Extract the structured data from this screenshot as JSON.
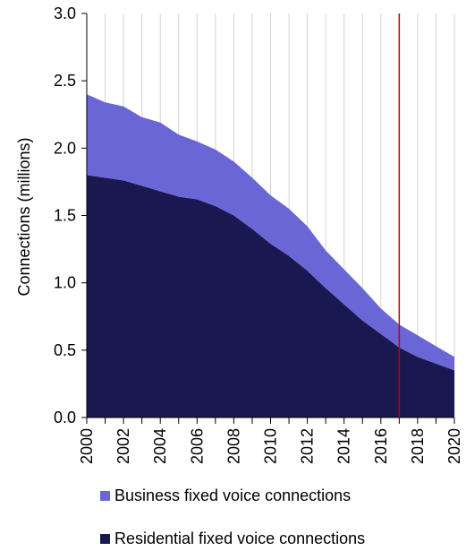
{
  "chart_data": {
    "type": "area",
    "stacked": true,
    "x": [
      2000,
      2001,
      2002,
      2003,
      2004,
      2005,
      2006,
      2007,
      2008,
      2009,
      2010,
      2011,
      2012,
      2013,
      2014,
      2015,
      2016,
      2017,
      2018,
      2019,
      2020
    ],
    "series": [
      {
        "name": "Residential fixed voice connections",
        "color": "#1a1850",
        "values": [
          1.8,
          1.78,
          1.76,
          1.72,
          1.68,
          1.64,
          1.62,
          1.57,
          1.5,
          1.4,
          1.29,
          1.2,
          1.09,
          0.96,
          0.84,
          0.72,
          0.62,
          0.52,
          0.45,
          0.4,
          0.35
        ]
      },
      {
        "name": "Business fixed voice connections",
        "color": "#6a66d6",
        "values": [
          0.6,
          0.56,
          0.55,
          0.51,
          0.51,
          0.46,
          0.43,
          0.42,
          0.4,
          0.38,
          0.36,
          0.35,
          0.33,
          0.28,
          0.26,
          0.24,
          0.19,
          0.17,
          0.16,
          0.13,
          0.1
        ]
      }
    ],
    "ylabel": "Connections (millions)",
    "xlabel": "",
    "ylim": [
      0,
      3.0
    ],
    "yticks": [
      "0.0",
      "0.5",
      "1.0",
      "1.5",
      "2.0",
      "2.5",
      "3.0"
    ],
    "xticks": [
      "2000",
      "2002",
      "2004",
      "2006",
      "2008",
      "2010",
      "2012",
      "2014",
      "2016",
      "2018",
      "2020"
    ],
    "marker_x": 2017,
    "marker_color": "#c00000",
    "grid": "vertical",
    "legend_position": "bottom"
  },
  "legend": {
    "items": [
      {
        "label": "Business fixed voice connections",
        "color": "#6a66d6"
      },
      {
        "label": "Residential fixed voice connections",
        "color": "#1a1850"
      }
    ]
  }
}
